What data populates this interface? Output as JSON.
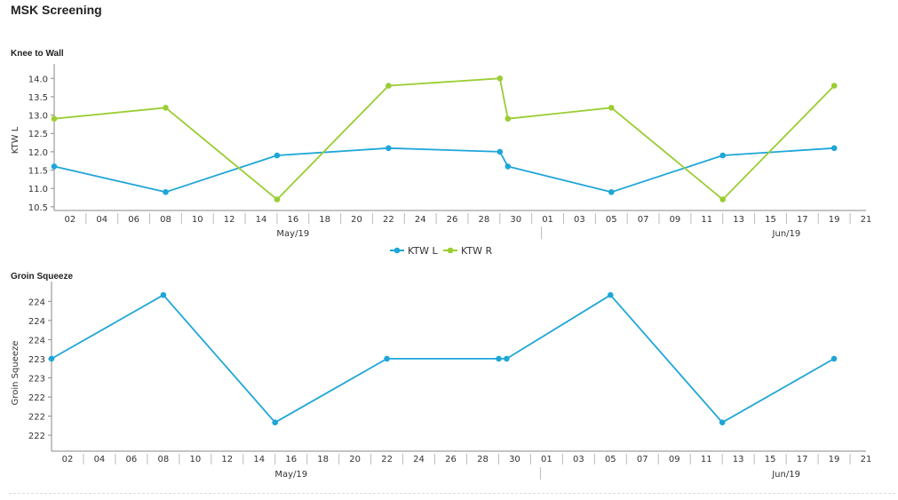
{
  "page": {
    "title": "MSK Screening"
  },
  "colors": {
    "ktw_l": "#1fa6d8",
    "ktw_r": "#9acd32",
    "groin": "#1fa6d8",
    "axis": "#8a8a8a"
  },
  "chart_data": [
    {
      "type": "line",
      "title": "Knee to Wall",
      "xlabel": "",
      "ylabel": "KTW L",
      "x_start": "2019-05-01",
      "x_end": "2019-06-21",
      "ylim": [
        10.4,
        14.2
      ],
      "yticks": [
        10.5,
        11.0,
        11.5,
        12.0,
        12.5,
        13.0,
        13.5,
        14.0
      ],
      "xticks": [
        {
          "date": "2019-05-02",
          "label": "02"
        },
        {
          "date": "2019-05-04",
          "label": "04"
        },
        {
          "date": "2019-05-06",
          "label": "06"
        },
        {
          "date": "2019-05-08",
          "label": "08"
        },
        {
          "date": "2019-05-10",
          "label": "10"
        },
        {
          "date": "2019-05-12",
          "label": "12"
        },
        {
          "date": "2019-05-14",
          "label": "14"
        },
        {
          "date": "2019-05-16",
          "label": "16"
        },
        {
          "date": "2019-05-18",
          "label": "18"
        },
        {
          "date": "2019-05-20",
          "label": "20"
        },
        {
          "date": "2019-05-22",
          "label": "22"
        },
        {
          "date": "2019-05-24",
          "label": "24"
        },
        {
          "date": "2019-05-26",
          "label": "26"
        },
        {
          "date": "2019-05-28",
          "label": "28"
        },
        {
          "date": "2019-05-30",
          "label": "30"
        },
        {
          "date": "2019-06-01",
          "label": "01"
        },
        {
          "date": "2019-06-03",
          "label": "03"
        },
        {
          "date": "2019-06-05",
          "label": "05"
        },
        {
          "date": "2019-06-07",
          "label": "07"
        },
        {
          "date": "2019-06-09",
          "label": "09"
        },
        {
          "date": "2019-06-11",
          "label": "11"
        },
        {
          "date": "2019-06-13",
          "label": "13"
        },
        {
          "date": "2019-06-15",
          "label": "15"
        },
        {
          "date": "2019-06-17",
          "label": "17"
        },
        {
          "date": "2019-06-19",
          "label": "19"
        },
        {
          "date": "2019-06-21",
          "label": "21"
        }
      ],
      "month_labels": [
        {
          "date": "2019-05-16",
          "label": "May/19"
        },
        {
          "date": "2019-06-16",
          "label": "Jun/19"
        }
      ],
      "month_divider": "2019-06-01",
      "series": [
        {
          "name": "KTW L",
          "color": "#1fa6d8",
          "x": [
            "2019-05-01",
            "2019-05-08",
            "2019-05-15",
            "2019-05-22",
            "2019-05-29",
            "2019-05-29 12:00",
            "2019-06-05",
            "2019-06-12",
            "2019-06-19"
          ],
          "values": [
            11.6,
            10.9,
            11.9,
            12.1,
            12.0,
            11.6,
            10.9,
            11.9,
            12.1
          ]
        },
        {
          "name": "KTW R",
          "color": "#9acd32",
          "x": [
            "2019-05-01",
            "2019-05-08",
            "2019-05-15",
            "2019-05-22",
            "2019-05-29",
            "2019-05-29 12:00",
            "2019-06-05",
            "2019-06-12",
            "2019-06-19"
          ],
          "values": [
            12.9,
            13.2,
            10.7,
            13.8,
            14.0,
            12.9,
            13.2,
            10.7,
            13.8
          ]
        }
      ],
      "legend": {
        "placement": "bottom-center",
        "items": [
          {
            "label": "KTW L",
            "color": "#1fa6d8"
          },
          {
            "label": "KTW R",
            "color": "#9acd32"
          }
        ]
      },
      "grid": false
    },
    {
      "type": "line",
      "title": "Groin Squeeze",
      "xlabel": "",
      "ylabel": "Groin Squeeze",
      "x_start": "2019-05-01",
      "x_end": "2019-06-21",
      "ylim": [
        221.55,
        224.1
      ],
      "yticks": [
        221.8,
        222.1,
        222.4,
        222.7,
        223.0,
        223.3,
        223.6,
        223.9
      ],
      "ytick_labels": [
        "222",
        "222",
        "222",
        "223",
        "223",
        "224",
        "224",
        "224"
      ],
      "xticks": [
        {
          "date": "2019-05-02",
          "label": "02"
        },
        {
          "date": "2019-05-04",
          "label": "04"
        },
        {
          "date": "2019-05-06",
          "label": "06"
        },
        {
          "date": "2019-05-08",
          "label": "08"
        },
        {
          "date": "2019-05-10",
          "label": "10"
        },
        {
          "date": "2019-05-12",
          "label": "12"
        },
        {
          "date": "2019-05-14",
          "label": "14"
        },
        {
          "date": "2019-05-16",
          "label": "16"
        },
        {
          "date": "2019-05-18",
          "label": "18"
        },
        {
          "date": "2019-05-20",
          "label": "20"
        },
        {
          "date": "2019-05-22",
          "label": "22"
        },
        {
          "date": "2019-05-24",
          "label": "24"
        },
        {
          "date": "2019-05-26",
          "label": "26"
        },
        {
          "date": "2019-05-28",
          "label": "28"
        },
        {
          "date": "2019-05-30",
          "label": "30"
        },
        {
          "date": "2019-06-01",
          "label": "01"
        },
        {
          "date": "2019-06-03",
          "label": "03"
        },
        {
          "date": "2019-06-05",
          "label": "05"
        },
        {
          "date": "2019-06-07",
          "label": "07"
        },
        {
          "date": "2019-06-09",
          "label": "09"
        },
        {
          "date": "2019-06-11",
          "label": "11"
        },
        {
          "date": "2019-06-13",
          "label": "13"
        },
        {
          "date": "2019-06-15",
          "label": "15"
        },
        {
          "date": "2019-06-17",
          "label": "17"
        },
        {
          "date": "2019-06-19",
          "label": "19"
        },
        {
          "date": "2019-06-21",
          "label": "21"
        }
      ],
      "month_labels": [
        {
          "date": "2019-05-16",
          "label": "May/19"
        },
        {
          "date": "2019-06-16",
          "label": "Jun/19"
        }
      ],
      "month_divider": "2019-06-01",
      "series": [
        {
          "name": "Groin Squeeze",
          "color": "#1fa6d8",
          "x": [
            "2019-05-01",
            "2019-05-08",
            "2019-05-15",
            "2019-05-22",
            "2019-05-29",
            "2019-05-29 12:00",
            "2019-06-05",
            "2019-06-12",
            "2019-06-19"
          ],
          "values": [
            223.0,
            224.0,
            222.0,
            223.0,
            223.0,
            223.0,
            224.0,
            222.0,
            223.0
          ]
        }
      ],
      "grid": false
    }
  ]
}
